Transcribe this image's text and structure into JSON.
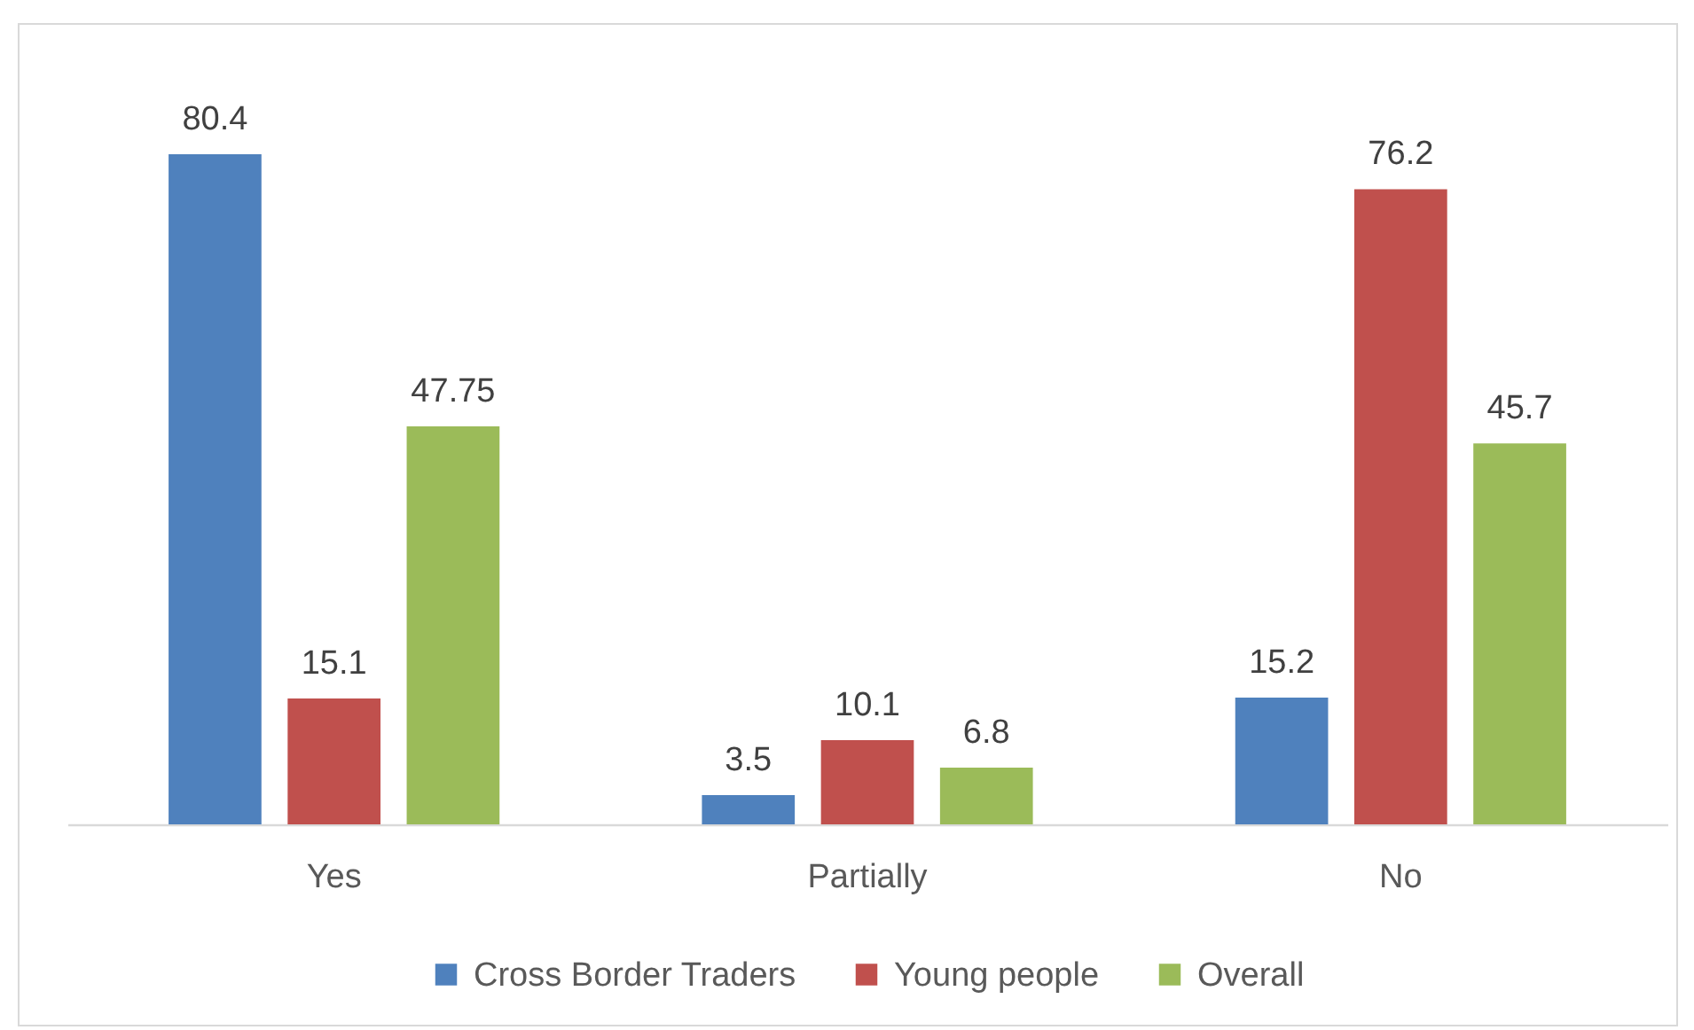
{
  "chart_data": {
    "type": "bar",
    "categories": [
      "Yes",
      "Partially",
      "No"
    ],
    "series": [
      {
        "name": "Cross Border Traders",
        "color": "#4f81bd",
        "values": [
          80.4,
          3.5,
          15.2
        ]
      },
      {
        "name": "Young people",
        "color": "#c0504d",
        "values": [
          15.1,
          10.1,
          76.2
        ]
      },
      {
        "name": "Overall",
        "color": "#9bbb59",
        "values": [
          47.75,
          6.8,
          45.7
        ]
      }
    ],
    "data_labels": true,
    "legend": "bottom",
    "tick_labels": "x"
  }
}
